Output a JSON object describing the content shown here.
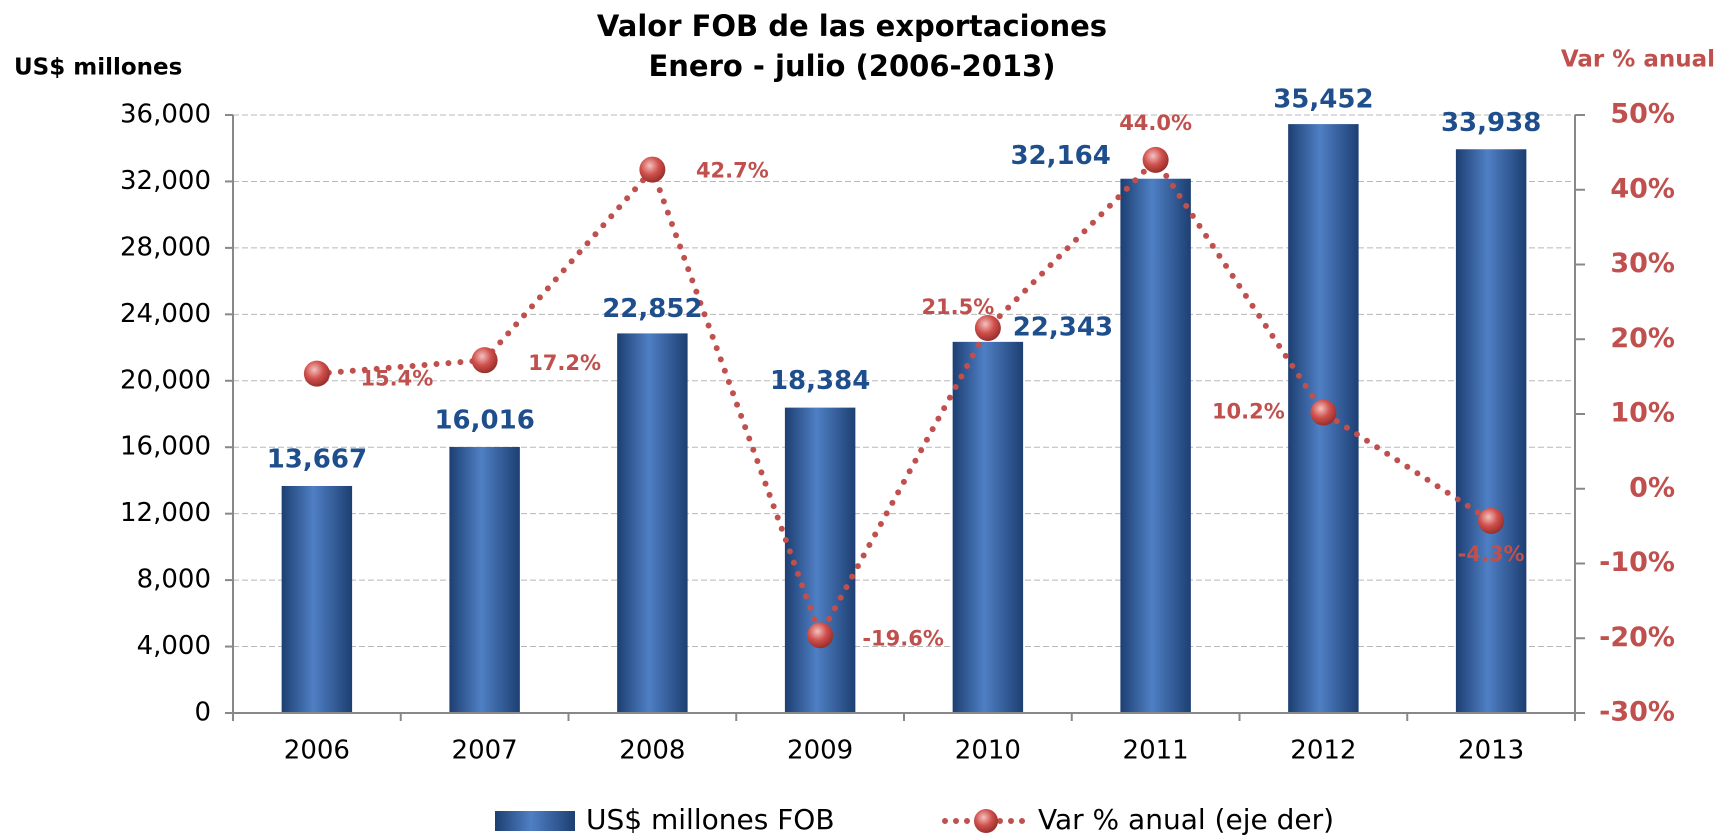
{
  "chart_data": {
    "type": "bar-line",
    "title": "Valor FOB de las exportaciones",
    "subtitle": "Enero - julio (2006-2013)",
    "y_label": "US$ millones",
    "y2_label": "Var % anual",
    "categories": [
      "2006",
      "2007",
      "2008",
      "2009",
      "2010",
      "2011",
      "2012",
      "2013"
    ],
    "series": [
      {
        "name": "US$ millones FOB",
        "color": "#2f5f9e",
        "values": [
          13667,
          16016,
          22852,
          18384,
          22343,
          32164,
          35452,
          33938
        ],
        "value_labels": [
          "13,667",
          "16,016",
          "22,852",
          "18,384",
          "22,343",
          "32,164",
          "35,452",
          "33,938"
        ]
      },
      {
        "name": "Var % anual (eje der)",
        "color": "#c0504d",
        "axis": "y2",
        "values": [
          15.4,
          17.2,
          42.7,
          -19.6,
          21.5,
          44.0,
          10.2,
          -4.3
        ],
        "value_labels": [
          "15.4%",
          "17.2%",
          "42.7%",
          "-19.6%",
          "21.5%",
          "44.0%",
          "10.2%",
          "-4.3%"
        ]
      }
    ],
    "ylim": [
      0,
      36000
    ],
    "yticks": [
      0,
      {
        "value": 4000,
        "label": "4,000"
      },
      {
        "value": 8000,
        "label": "8,000"
      },
      {
        "value": 12000,
        "label": "12,000"
      },
      {
        "value": 16000,
        "label": "16,000"
      },
      {
        "value": 20000,
        "label": "20,000"
      },
      {
        "value": 24000,
        "label": "24,000"
      },
      {
        "value": 28000,
        "label": "28,000"
      },
      {
        "value": 32000,
        "label": "32,000"
      },
      {
        "value": 36000,
        "label": "36,000"
      }
    ],
    "y2lim": [
      -30,
      50
    ],
    "y2ticks": [
      {
        "value": -30,
        "label": "-30%"
      },
      {
        "value": -20,
        "label": "-20%"
      },
      {
        "value": -10,
        "label": "-10%"
      },
      {
        "value": 0,
        "label": "0%"
      },
      {
        "value": 10,
        "label": "10%"
      },
      {
        "value": 20,
        "label": "20%"
      },
      {
        "value": 30,
        "label": "30%"
      },
      {
        "value": 40,
        "label": "40%"
      },
      {
        "value": 50,
        "label": "50%"
      }
    ],
    "grid": true,
    "legend": "bottom"
  }
}
